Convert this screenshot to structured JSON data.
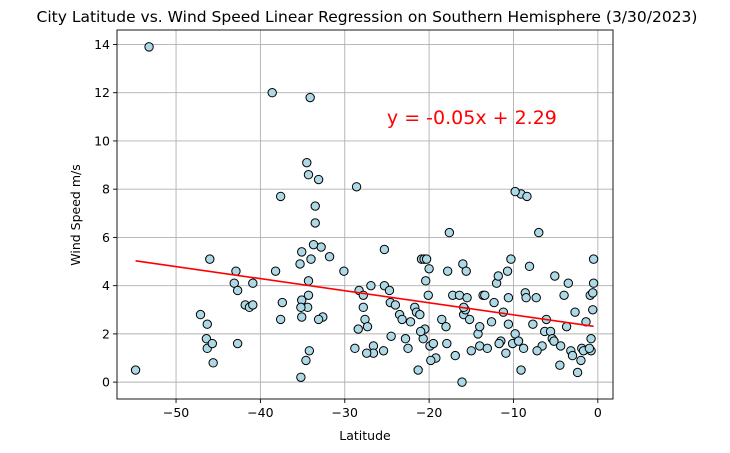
{
  "chart_data": {
    "type": "scatter",
    "title": "City Latitude vs. Wind Speed Linear Regression on Southern Hemisphere (3/30/2023)",
    "xlabel": "Latitude",
    "ylabel": "Wind Speed m/s",
    "xlim": [
      -57.0,
      1.8
    ],
    "ylim": [
      -0.7,
      14.6
    ],
    "xticks": [
      -50,
      -40,
      -30,
      -20,
      -10,
      0
    ],
    "xtick_labels": [
      "−50",
      "−40",
      "−30",
      "−20",
      "−10",
      "0"
    ],
    "yticks": [
      0,
      2,
      4,
      6,
      8,
      10,
      12,
      14
    ],
    "ytick_labels": [
      "0",
      "2",
      "4",
      "6",
      "8",
      "10",
      "12",
      "14"
    ],
    "grid": true,
    "marker_color": "#add8e6",
    "marker_edge_color": "#000000",
    "regression": {
      "slope": -0.05,
      "intercept": 2.29,
      "x_range": [
        -54.8,
        -0.5
      ],
      "color": "#ff0000",
      "equation": "y = -0.05x + 2.29",
      "equation_at": [
        -25,
        11
      ]
    },
    "points": {
      "x": [
        -54.8,
        -53.2,
        -38.6,
        -34.1,
        -37.6,
        -34.5,
        -33.1,
        -34.3,
        -33.5,
        -33.5,
        -35.1,
        -31.8,
        -35.3,
        -35.1,
        -34.3,
        -34.4,
        -34.0,
        -32.8,
        -32.6,
        -33.1,
        -35.1,
        -34.2,
        -34.6,
        -35.2,
        -34.3,
        -33.7,
        -35.2,
        -38.2,
        -37.4,
        -37.6,
        -46.0,
        -47.1,
        -43.1,
        -42.9,
        -42.7,
        -41.8,
        -41.3,
        -40.9,
        -40.9,
        -46.4,
        -46.3,
        -46.3,
        -45.7,
        -42.7,
        -45.6,
        -30.1,
        -28.6,
        -28.3,
        -28.4,
        -27.8,
        -27.8,
        -27.6,
        -27.3,
        -26.9,
        -26.6,
        -26.6,
        -25.3,
        -25.3,
        -24.7,
        -24.6,
        -24.0,
        -23.5,
        -23.2,
        -22.8,
        -22.5,
        -22.2,
        -21.7,
        -21.5,
        -21.3,
        -21.1,
        -20.9,
        -20.4,
        -20.6,
        -20.3,
        -20.0,
        -20.1,
        -20.5,
        -20.7,
        -19.9,
        -19.5,
        -19.2,
        -18.5,
        -18.0,
        -17.8,
        -17.6,
        -17.2,
        -16.9,
        -16.4,
        -16.0,
        -15.9,
        -15.7,
        -15.6,
        -15.5,
        -15.2,
        -15.0,
        -14.2,
        -14.0,
        -13.6,
        -13.4,
        -13.1,
        -12.6,
        -12.3,
        -12.0,
        -11.8,
        -11.5,
        -11.2,
        -10.9,
        -10.7,
        -10.6,
        -10.6,
        -10.3,
        -10.1,
        -9.8,
        -9.4,
        -9.1,
        -9.1,
        -8.8,
        -8.6,
        -8.5,
        -8.4,
        -8.1,
        -7.7,
        -7.3,
        -7.0,
        -6.6,
        -6.3,
        -6.1,
        -5.6,
        -5.4,
        -5.2,
        -5.1,
        -4.5,
        -4.4,
        -4.0,
        -3.7,
        -3.5,
        -3.2,
        -3.0,
        -2.7,
        -2.4,
        -2.0,
        -1.9,
        -1.7,
        -1.4,
        -0.9,
        -0.8,
        -0.8,
        -0.6,
        -0.6,
        -0.5,
        -0.5,
        -1.0,
        -21.0,
        -17.9,
        -9.8,
        -25.4,
        -28.8,
        -16.1,
        -15.9,
        -24.5,
        -14.0,
        -11.7,
        -7.2,
        -19.8,
        -27.4
      ],
      "y": [
        0.5,
        13.9,
        12.0,
        11.8,
        7.7,
        9.1,
        8.4,
        8.6,
        6.6,
        7.3,
        5.4,
        5.2,
        4.9,
        3.4,
        4.2,
        3.1,
        5.1,
        5.6,
        2.7,
        2.6,
        2.7,
        1.3,
        0.9,
        0.2,
        3.6,
        5.7,
        3.1,
        4.6,
        3.3,
        2.6,
        5.1,
        2.8,
        4.1,
        4.6,
        3.8,
        3.2,
        3.1,
        3.2,
        4.1,
        1.8,
        2.4,
        1.4,
        1.6,
        1.6,
        0.8,
        4.6,
        8.1,
        3.8,
        2.2,
        3.6,
        3.1,
        2.6,
        2.3,
        4.0,
        1.5,
        1.2,
        5.5,
        4.0,
        3.8,
        3.3,
        3.2,
        2.8,
        2.6,
        1.8,
        1.4,
        2.5,
        3.1,
        2.9,
        0.5,
        2.8,
        5.1,
        4.2,
        5.1,
        5.1,
        4.7,
        3.6,
        2.2,
        1.8,
        1.5,
        1.6,
        1.0,
        2.6,
        2.3,
        4.6,
        6.2,
        3.6,
        1.1,
        3.6,
        4.9,
        2.8,
        3.0,
        4.6,
        3.5,
        2.6,
        1.3,
        2.0,
        1.5,
        3.6,
        3.6,
        1.4,
        2.5,
        3.3,
        4.1,
        4.4,
        1.7,
        2.9,
        1.2,
        4.6,
        3.5,
        2.4,
        5.1,
        1.6,
        2.0,
        1.7,
        7.8,
        0.5,
        1.4,
        3.7,
        3.5,
        7.7,
        4.8,
        2.4,
        3.5,
        6.2,
        1.5,
        2.1,
        2.6,
        2.1,
        1.8,
        1.7,
        4.4,
        0.7,
        1.5,
        3.6,
        2.3,
        4.1,
        1.3,
        1.1,
        2.9,
        0.4,
        0.9,
        1.4,
        1.3,
        2.5,
        3.6,
        1.3,
        1.8,
        3.7,
        3.0,
        4.1,
        5.1,
        1.4,
        2.1,
        1.6,
        7.9,
        1.3,
        1.4,
        0.0,
        3.1,
        1.9,
        2.3,
        1.6,
        1.3,
        0.9,
        1.2
      ]
    }
  }
}
